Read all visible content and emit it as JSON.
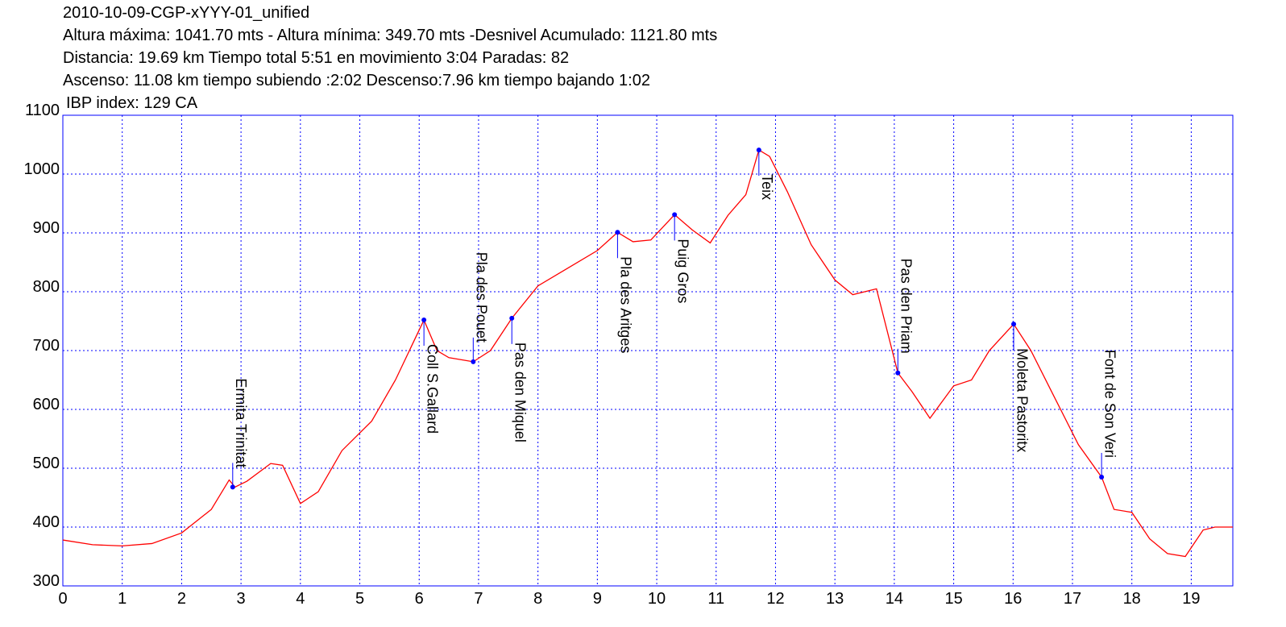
{
  "chart_data": {
    "type": "line",
    "title": "2010-10-09-CGP-xYYY-01_unified",
    "subtitles": [
      "Altura máxima: 1041.70 mts - Altura mínima: 349.70 mts -Desnivel Acumulado: 1121.80 mts",
      "Distancia: 19.69 km  Tiempo total 5:51  en movimiento 3:04 Paradas: 82",
      "Ascenso: 11.08 km  tiempo subiendo :2:02  Descenso:7.96 km tiempo bajando 1:02",
      "IBP index: 129 CA"
    ],
    "x": [
      0,
      0.5,
      1,
      1.5,
      2,
      2.5,
      2.8,
      2.9,
      3.1,
      3.5,
      3.7,
      4.0,
      4.3,
      4.7,
      5.2,
      5.6,
      6.08,
      6.3,
      6.5,
      6.91,
      7.2,
      7.56,
      8,
      8.5,
      9,
      9.34,
      9.6,
      9.9,
      10.3,
      10.6,
      10.9,
      11.2,
      11.5,
      11.72,
      11.9,
      12.2,
      12.6,
      13,
      13.3,
      13.7,
      14.06,
      14.3,
      14.6,
      15,
      15.3,
      15.6,
      16.01,
      16.3,
      16.7,
      17.1,
      17.49,
      17.7,
      18,
      18.3,
      18.6,
      18.9,
      19.2,
      19.4,
      19.7
    ],
    "series": [
      {
        "color": "#ff0000",
        "values": [
          378,
          370,
          368,
          372,
          390,
          430,
          480,
          468,
          478,
          508,
          505,
          440,
          460,
          530,
          580,
          650,
          752,
          700,
          688,
          681,
          700,
          755,
          810,
          840,
          870,
          901,
          885,
          888,
          931,
          905,
          883,
          930,
          965,
          1041,
          1030,
          970,
          880,
          820,
          795,
          805,
          662,
          630,
          585,
          640,
          650,
          700,
          745,
          700,
          620,
          540,
          485,
          430,
          425,
          380,
          355,
          350,
          395,
          400,
          400
        ]
      }
    ],
    "annotations": [
      {
        "label": "Ermita Trinitat",
        "x": 2.86,
        "y": 468
      },
      {
        "label": "Coll S.Gallard",
        "x": 6.08,
        "y": 752
      },
      {
        "label": "Pla des Pouet",
        "x": 6.91,
        "y": 681
      },
      {
        "label": "Pas den Miquel",
        "x": 7.56,
        "y": 755
      },
      {
        "label": "Pla des Aritges",
        "x": 9.34,
        "y": 901
      },
      {
        "label": "Puig Gros",
        "x": 10.3,
        "y": 931
      },
      {
        "label": "Teix",
        "x": 11.72,
        "y": 1041
      },
      {
        "label": "Pas den Priam",
        "x": 14.06,
        "y": 662
      },
      {
        "label": "Moleta Pastoritx",
        "x": 16.01,
        "y": 745
      },
      {
        "label": "Font de Son Veri",
        "x": 17.49,
        "y": 485
      }
    ],
    "marker_color": "#0000ff",
    "xlim": [
      0,
      19.7
    ],
    "ylim": [
      300,
      1100
    ],
    "xticks": [
      0,
      1,
      2,
      3,
      4,
      5,
      6,
      7,
      8,
      9,
      10,
      11,
      12,
      13,
      14,
      15,
      16,
      17,
      18,
      19
    ],
    "yticks": [
      300,
      400,
      500,
      600,
      700,
      800,
      900,
      1000,
      1100
    ],
    "grid": true
  }
}
